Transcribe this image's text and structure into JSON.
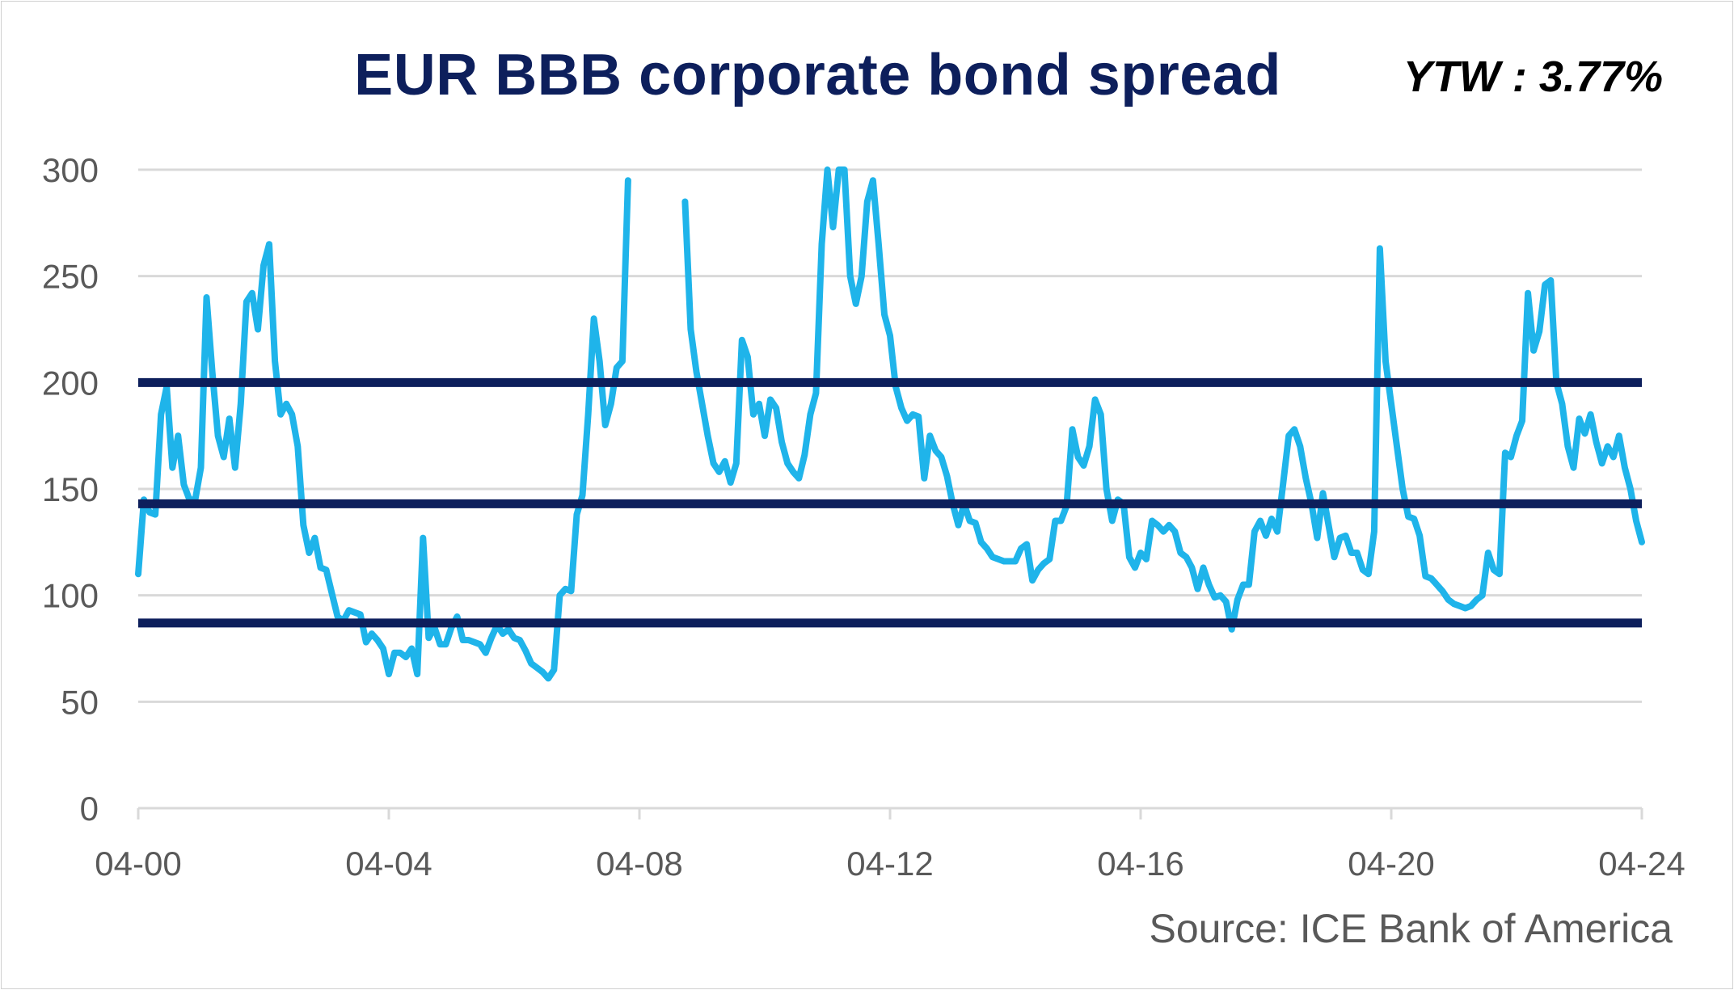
{
  "chart_data": {
    "type": "line",
    "title": "EUR BBB corporate bond spread",
    "annotation": "YTW : 3.77%",
    "source": "Source: ICE Bank of America",
    "xlabel": "",
    "ylabel": "",
    "ylim": [
      0,
      300
    ],
    "yticks": [
      "0",
      "50",
      "100",
      "150",
      "200",
      "250",
      "300"
    ],
    "xticks": [
      "04-00",
      "04-04",
      "04-08",
      "04-12",
      "04-16",
      "04-20",
      "04-24"
    ],
    "grid": "horizontal",
    "colors": {
      "series": "#1fb4ea",
      "reference": "#0d1f5c",
      "title": "#0d1f5c",
      "grid": "#d9d9d9",
      "axis_text": "#595959"
    },
    "reference_lines": [
      {
        "y": 200
      },
      {
        "y": 143
      },
      {
        "y": 87
      }
    ],
    "series": [
      {
        "name": "",
        "x_start": "2000-04",
        "x_end": "2024-04",
        "values": [
          110,
          145,
          139,
          138,
          185,
          198,
          160,
          175,
          152,
          145,
          145,
          160,
          240,
          205,
          175,
          165,
          183,
          160,
          190,
          238,
          242,
          225,
          255,
          265,
          210,
          185,
          190,
          185,
          170,
          133,
          120,
          127,
          113,
          112,
          101,
          90,
          88,
          93,
          92,
          91,
          78,
          82,
          79,
          75,
          63,
          73,
          73,
          71,
          75,
          63,
          127,
          80,
          85,
          77,
          77,
          85,
          90,
          79,
          79,
          78,
          77,
          73,
          80,
          86,
          82,
          84,
          80,
          79,
          74,
          68,
          66,
          64,
          61,
          65,
          100,
          103,
          102,
          138,
          147,
          185,
          230,
          210,
          180,
          190,
          207,
          210,
          295,
          null,
          null,
          null,
          null,
          null,
          null,
          null,
          null,
          null,
          285,
          225,
          205,
          190,
          175,
          162,
          158,
          163,
          153,
          162,
          220,
          212,
          185,
          190,
          175,
          192,
          188,
          172,
          162,
          158,
          155,
          166,
          185,
          195,
          265,
          300,
          273,
          300,
          300,
          250,
          237,
          250,
          285,
          295,
          265,
          232,
          222,
          198,
          188,
          182,
          185,
          184,
          155,
          175,
          168,
          165,
          156,
          143,
          133,
          143,
          135,
          134,
          125,
          122,
          118,
          117,
          116,
          116,
          116,
          122,
          124,
          107,
          112,
          115,
          117,
          135,
          135,
          142,
          178,
          165,
          161,
          170,
          192,
          185,
          150,
          135,
          145,
          143,
          118,
          113,
          120,
          117,
          135,
          133,
          130,
          133,
          130,
          120,
          118,
          113,
          103,
          113,
          105,
          99,
          100,
          97,
          84,
          98,
          105,
          105,
          130,
          135,
          128,
          136,
          130,
          152,
          175,
          178,
          170,
          155,
          143,
          127,
          148,
          133,
          118,
          127,
          128,
          120,
          120,
          112,
          110,
          130,
          263,
          210,
          190,
          170,
          150,
          137,
          136,
          128,
          109,
          108,
          105,
          102,
          98,
          96,
          95,
          94,
          95,
          98,
          100,
          120,
          112,
          110,
          167,
          165,
          175,
          182,
          242,
          215,
          224,
          246,
          248,
          200,
          190,
          170,
          160,
          183,
          176,
          185,
          172,
          162,
          170,
          165,
          175,
          160,
          150,
          135,
          125
        ]
      }
    ]
  }
}
